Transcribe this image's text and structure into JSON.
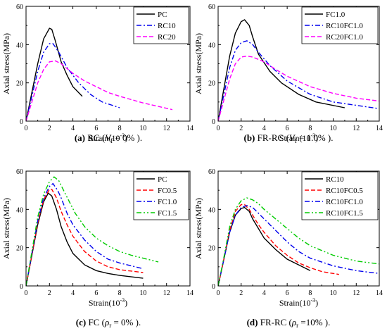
{
  "chart_data": [
    {
      "type": "line",
      "xlabel": "Strain(10",
      "xlabel_sup": "-3",
      "xlabel_close": ")",
      "ylabel": "Axial stress(MPa)",
      "xlim": [
        0,
        14
      ],
      "ylim": [
        0,
        60
      ],
      "x_ticks": [
        0,
        2,
        4,
        6,
        8,
        10,
        12,
        14
      ],
      "y_ticks": [
        0,
        20,
        40,
        60
      ],
      "legend_position": "top-right",
      "caption": {
        "tag": "(a)",
        "name": " RC (",
        "var": "V",
        "sub": "f",
        "rest": " = 0% )."
      },
      "series": [
        {
          "name": "PC",
          "color": "#000000",
          "dash": "solid",
          "x": [
            0,
            0.5,
            1.0,
            1.5,
            2.0,
            2.2,
            2.5,
            3.0,
            3.5,
            4.0,
            4.8
          ],
          "y": [
            0,
            15,
            30,
            43,
            48.5,
            48,
            42,
            31,
            24,
            18,
            13
          ]
        },
        {
          "name": "RC10",
          "color": "#0000ee",
          "dash": "dashdot",
          "x": [
            0,
            0.5,
            1.0,
            1.5,
            2.0,
            2.3,
            2.8,
            3.5,
            4.5,
            5.5,
            6.5,
            8.0
          ],
          "y": [
            0,
            13,
            26,
            36,
            40.5,
            40.5,
            36,
            28,
            20,
            14,
            10,
            7
          ]
        },
        {
          "name": "RC20",
          "color": "#ff00ff",
          "dash": "dash",
          "x": [
            0,
            0.5,
            1.0,
            1.5,
            2.0,
            2.5,
            3.0,
            4.0,
            5.0,
            6.0,
            7.0,
            8.0,
            10.0,
            12.5
          ],
          "y": [
            0,
            10,
            20,
            27,
            31,
            31.5,
            30,
            25,
            21,
            18,
            15,
            13,
            9.5,
            6
          ]
        }
      ]
    },
    {
      "type": "line",
      "xlabel": "Strain(10",
      "xlabel_sup": "-3",
      "xlabel_close": ")",
      "ylabel": "Axial stress(MPa)",
      "xlim": [
        0,
        14
      ],
      "ylim": [
        0,
        60
      ],
      "x_ticks": [
        0,
        2,
        4,
        6,
        8,
        10,
        12,
        14
      ],
      "y_ticks": [
        0,
        20,
        40,
        60
      ],
      "legend_position": "top-right",
      "caption": {
        "tag": "(b)",
        "name": " FR-RC (",
        "var": "V",
        "sub": "f",
        "rest": " = 1.0% )."
      },
      "series": [
        {
          "name": "FC1.0",
          "color": "#000000",
          "dash": "solid",
          "x": [
            0,
            0.5,
            1.0,
            1.5,
            2.0,
            2.3,
            2.7,
            3.0,
            3.5,
            4.5,
            5.5,
            7.0,
            8.5,
            11.0
          ],
          "y": [
            0,
            17,
            34,
            46,
            52,
            53,
            50,
            44,
            35,
            26,
            20,
            14,
            10,
            7
          ]
        },
        {
          "name": "RC10FC1.0",
          "color": "#0000ee",
          "dash": "dashdot",
          "x": [
            0,
            0.5,
            1.0,
            1.5,
            2.0,
            2.5,
            3.0,
            3.5,
            4.5,
            6.0,
            8.0,
            10.0,
            14.0
          ],
          "y": [
            0,
            14,
            28,
            37,
            41,
            42,
            40,
            36,
            29,
            21,
            14,
            10,
            6.5
          ]
        },
        {
          "name": "RC20FC1.0",
          "color": "#ff00ff",
          "dash": "dash",
          "x": [
            0,
            0.5,
            1.0,
            1.5,
            2.0,
            2.5,
            3.0,
            4.0,
            5.0,
            6.0,
            8.0,
            10.0,
            12.0,
            14.0
          ],
          "y": [
            0,
            11,
            22,
            30,
            33.5,
            34,
            33.5,
            31,
            27,
            23.5,
            18,
            14.5,
            12,
            10.5
          ]
        }
      ]
    },
    {
      "type": "line",
      "xlabel": "Strain(10",
      "xlabel_sup": "-3",
      "xlabel_close": ")",
      "ylabel": "Axial stress(MPa)",
      "xlim": [
        0,
        14
      ],
      "ylim": [
        0,
        60
      ],
      "x_ticks": [
        0,
        2,
        4,
        6,
        8,
        10,
        12,
        14
      ],
      "y_ticks": [
        0,
        20,
        40,
        60
      ],
      "legend_position": "top-right",
      "caption": {
        "tag": "(c)",
        "name": " FC (",
        "var": "ρ",
        "sub": "r",
        "rest": " = 0% )."
      },
      "series": [
        {
          "name": "PC",
          "color": "#000000",
          "dash": "solid",
          "x": [
            0,
            0.5,
            1.0,
            1.5,
            1.9,
            2.2,
            2.6,
            3.0,
            3.5,
            4.0,
            5.0,
            6.0,
            7.0,
            8.0,
            10.0
          ],
          "y": [
            0,
            16,
            32,
            44,
            48.5,
            47,
            40,
            31,
            23,
            17,
            11,
            8,
            6.5,
            5.5,
            4
          ]
        },
        {
          "name": "FC0.5",
          "color": "#ff0000",
          "dash": "dash",
          "x": [
            0,
            0.5,
            1.0,
            1.5,
            2.0,
            2.2,
            2.6,
            3.0,
            3.5,
            4.0,
            5.0,
            6.0,
            7.0,
            8.0,
            10.0
          ],
          "y": [
            0,
            16,
            33,
            45,
            50.5,
            50.5,
            46,
            39,
            32,
            26,
            18,
            13,
            10,
            8.5,
            7
          ]
        },
        {
          "name": "FC1.0",
          "color": "#0000ee",
          "dash": "dashdot",
          "x": [
            0,
            0.5,
            1.0,
            1.5,
            2.0,
            2.3,
            2.7,
            3.0,
            3.5,
            4.0,
            5.0,
            6.0,
            7.0,
            8.0,
            10.0
          ],
          "y": [
            0,
            17,
            34,
            46,
            52,
            53.5,
            50,
            46,
            38,
            32,
            24,
            18,
            14,
            12,
            9
          ]
        },
        {
          "name": "FC1.5",
          "color": "#00cc00",
          "dash": "dashdotdot",
          "x": [
            0,
            0.5,
            1.0,
            1.5,
            2.0,
            2.4,
            2.8,
            3.2,
            3.7,
            4.2,
            5.0,
            6.0,
            7.0,
            8.0,
            9.0,
            10.0,
            11.3
          ],
          "y": [
            0,
            18,
            36,
            48,
            54.5,
            57,
            55,
            50,
            44,
            38,
            31,
            25,
            21,
            18,
            16,
            14.5,
            12.5
          ]
        }
      ]
    },
    {
      "type": "line",
      "xlabel": "Strain(10",
      "xlabel_sup": "-3",
      "xlabel_close": ")",
      "ylabel": "Axial stress(MPa)",
      "xlim": [
        0,
        14
      ],
      "ylim": [
        0,
        60
      ],
      "x_ticks": [
        0,
        2,
        4,
        6,
        8,
        10,
        12,
        14
      ],
      "y_ticks": [
        0,
        20,
        40,
        60
      ],
      "legend_position": "top-right",
      "caption": {
        "tag": "(d)",
        "name": " FR-RC (",
        "var": "ρ",
        "sub": "r",
        "rest": " =10% )."
      },
      "series": [
        {
          "name": "RC10",
          "color": "#000000",
          "dash": "solid",
          "x": [
            0,
            0.5,
            1.0,
            1.5,
            2.0,
            2.3,
            2.7,
            3.0,
            3.5,
            4.0,
            5.0,
            6.0,
            7.0,
            8.0
          ],
          "y": [
            0,
            14,
            28,
            37,
            40.5,
            41,
            39,
            35,
            30,
            25,
            19,
            14,
            11,
            8
          ]
        },
        {
          "name": "RC10FC0.5",
          "color": "#ff0000",
          "dash": "dash",
          "x": [
            0,
            0.5,
            1.0,
            1.5,
            2.0,
            2.3,
            2.7,
            3.0,
            3.5,
            4.0,
            5.0,
            6.0,
            7.0,
            8.0,
            9.0,
            10.5
          ],
          "y": [
            0,
            14,
            29,
            39,
            42.5,
            42.5,
            40,
            37,
            32,
            28,
            21,
            16,
            12,
            9.5,
            7.5,
            6
          ]
        },
        {
          "name": "RC10FC1.0",
          "color": "#0000ee",
          "dash": "dashdot",
          "x": [
            0,
            0.5,
            1.0,
            1.5,
            2.0,
            2.5,
            3.0,
            3.5,
            4.0,
            5.0,
            6.0,
            7.0,
            8.0,
            10.0,
            12.0,
            14.0
          ],
          "y": [
            0,
            14,
            28,
            37,
            41,
            42,
            41,
            38,
            35,
            29,
            23,
            18,
            14.5,
            10.5,
            8,
            6.5
          ]
        },
        {
          "name": "RC10FC1.5",
          "color": "#00cc00",
          "dash": "dashdotdot",
          "x": [
            0,
            0.5,
            1.0,
            1.5,
            2.0,
            2.5,
            3.0,
            3.5,
            4.0,
            5.0,
            6.0,
            7.0,
            8.0,
            10.0,
            12.0,
            14.0
          ],
          "y": [
            0,
            15,
            31,
            40,
            44.5,
            46,
            45,
            43,
            40,
            35,
            30,
            25,
            21,
            16,
            13,
            11.5
          ]
        }
      ]
    }
  ]
}
